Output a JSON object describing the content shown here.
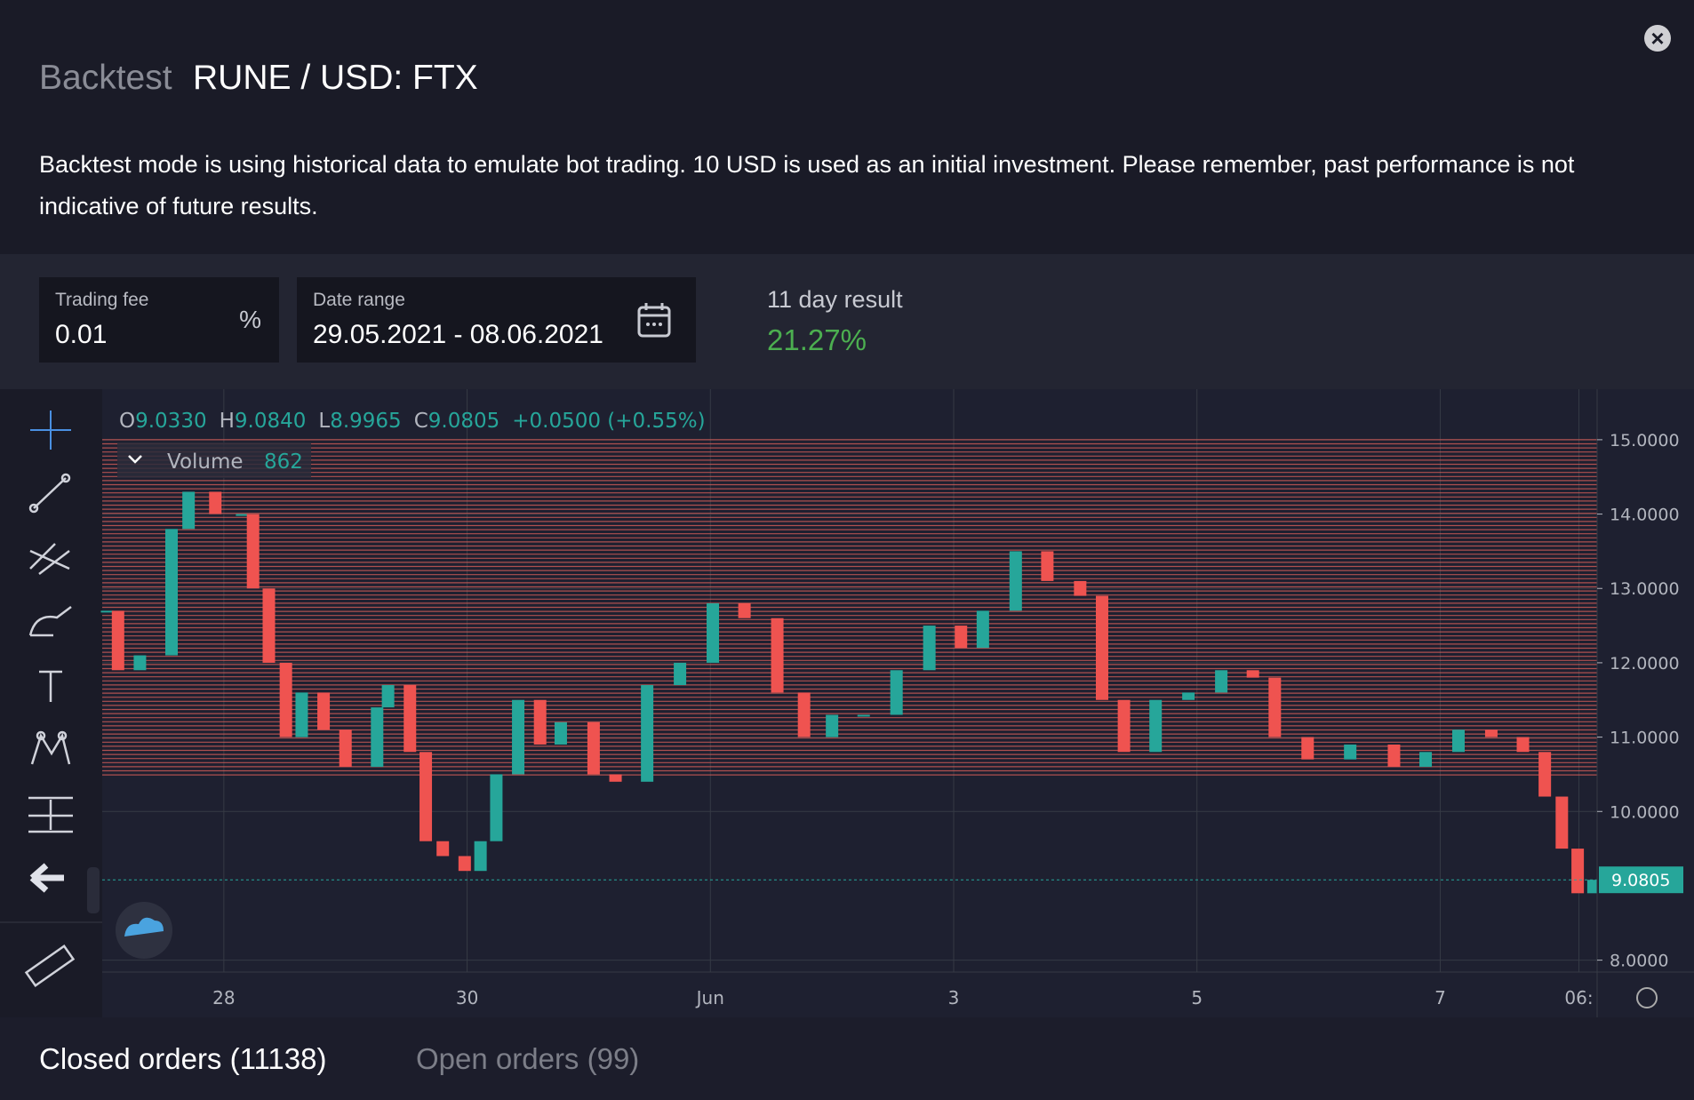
{
  "header": {
    "kicker": "Backtest",
    "title": "RUNE / USD: FTX",
    "description": "Backtest mode is using historical data to emulate bot trading. 10 USD is used as an initial investment. Please remember, past performance is not indicative of future results."
  },
  "settings": {
    "fee_label": "Trading fee",
    "fee_value": "0.01",
    "fee_unit": "%",
    "range_label": "Date range",
    "range_value": "29.05.2021 - 08.06.2021",
    "result_label": "11 day result",
    "result_value": "21.27%"
  },
  "legend": {
    "ohlc": [
      {
        "key": "O",
        "value": "9.0330"
      },
      {
        "key": "H",
        "value": "9.0840"
      },
      {
        "key": "L",
        "value": "8.9965"
      },
      {
        "key": "C",
        "value": "9.0805"
      }
    ],
    "change": "+0.0500 (+0.55%)",
    "volume_label": "Volume",
    "volume_value": "862"
  },
  "chart_data": {
    "type": "candlestick",
    "x": [
      27.04,
      27.13,
      27.31,
      27.57,
      27.71,
      27.93,
      28.15,
      28.24,
      28.37,
      28.51,
      28.64,
      28.82,
      29.0,
      29.26,
      29.35,
      29.53,
      29.66,
      29.8,
      29.98,
      30.11,
      30.24,
      30.42,
      30.6,
      30.77,
      31.04,
      31.22,
      31.48,
      31.75,
      32.02,
      32.28,
      32.55,
      32.77,
      33.0,
      33.26,
      33.53,
      33.8,
      34.06,
      34.24,
      34.51,
      34.77,
      35.04,
      35.22,
      35.4,
      35.66,
      35.93,
      36.2,
      36.46,
      36.64,
      36.91,
      37.26,
      37.62,
      37.88,
      38.15,
      38.42,
      38.68,
      38.86,
      39.0,
      39.13,
      39.26
    ],
    "series": [
      {
        "name": "RUNE / USD",
        "values": [
          12.7,
          11.9,
          12.1,
          13.8,
          14.3,
          14.0,
          14.0,
          13.0,
          12.0,
          11.0,
          11.6,
          11.1,
          10.6,
          11.4,
          11.7,
          10.8,
          9.6,
          9.4,
          9.2,
          9.6,
          10.5,
          11.5,
          10.9,
          11.2,
          10.5,
          10.4,
          11.7,
          12.0,
          12.8,
          12.6,
          11.6,
          11.0,
          11.3,
          11.3,
          11.9,
          12.5,
          12.2,
          12.7,
          13.5,
          13.1,
          12.9,
          11.5,
          10.8,
          11.5,
          11.6,
          11.9,
          11.8,
          11.0,
          10.7,
          10.9,
          10.6,
          10.8,
          11.1,
          11.0,
          10.8,
          10.2,
          9.5,
          8.9,
          9.0805
        ]
      }
    ],
    "up_color": "#26a69a",
    "down_color": "#ef5350",
    "xlim": [
      27.0,
      39.29
    ],
    "xticks": [
      {
        "value": 28,
        "label": "28"
      },
      {
        "value": 30,
        "label": "30"
      },
      {
        "value": 32,
        "label": "Jun"
      },
      {
        "value": 34,
        "label": "3"
      },
      {
        "value": 36,
        "label": "5"
      },
      {
        "value": 38,
        "label": "7"
      },
      {
        "value": 39.14,
        "label": "06:"
      }
    ],
    "ylim": [
      7.84,
      15.68
    ],
    "yticks": [
      {
        "value": 8,
        "label": "8.0000"
      },
      {
        "value": 10,
        "label": "10.0000"
      },
      {
        "value": 11,
        "label": "11.0000"
      },
      {
        "value": 12,
        "label": "12.0000"
      },
      {
        "value": 13,
        "label": "13.0000"
      },
      {
        "value": 14,
        "label": "14.0000"
      },
      {
        "value": 15,
        "label": "15.0000"
      }
    ],
    "last_price": 9.0805,
    "order_grid": {
      "low": 10.45,
      "high": 15.0,
      "color": "#e0605a"
    },
    "grid": true
  },
  "tabs": [
    "Closed orders (11138)",
    "Open orders (99)"
  ]
}
